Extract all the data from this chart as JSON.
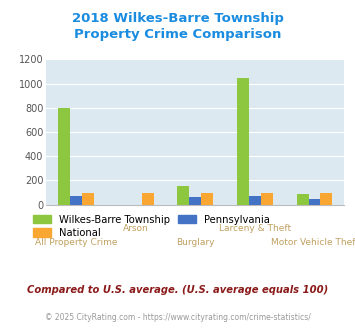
{
  "title_line1": "2018 Wilkes-Barre Township",
  "title_line2": "Property Crime Comparison",
  "title_color": "#1a8ce0",
  "categories": [
    "All Property Crime",
    "Arson",
    "Burglary",
    "Larceny & Theft",
    "Motor Vehicle Theft"
  ],
  "top_labels": {
    "1": "Arson",
    "3": "Larceny & Theft"
  },
  "bottom_labels": {
    "0": "All Property Crime",
    "2": "Burglary",
    "4": "Motor Vehicle Theft"
  },
  "wilkes": [
    800,
    0,
    155,
    1050,
    88
  ],
  "pennsylvania": [
    75,
    0,
    65,
    75,
    45
  ],
  "national": [
    100,
    100,
    100,
    100,
    100
  ],
  "wilkes_color": "#8dc63f",
  "pennsylvania_color": "#4472c4",
  "national_color": "#faa632",
  "ylim": [
    0,
    1200
  ],
  "yticks": [
    0,
    200,
    400,
    600,
    800,
    1000,
    1200
  ],
  "plot_bg": "#dce9f0",
  "fig_bg": "#ffffff",
  "subtitle": "Compared to U.S. average. (U.S. average equals 100)",
  "footer": "© 2025 CityRating.com - https://www.cityrating.com/crime-statistics/",
  "subtitle_color": "#8b1a1a",
  "footer_color": "#999999",
  "x_label_color": "#c0a060",
  "grid_color": "#ffffff",
  "bar_width": 0.2
}
